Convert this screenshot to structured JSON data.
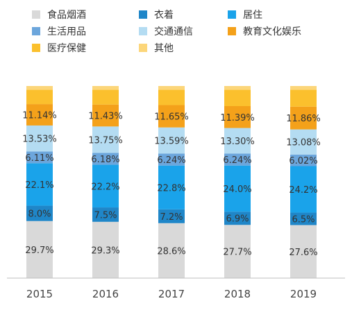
{
  "chart_data": {
    "type": "bar",
    "stacked": true,
    "percent_stacked": true,
    "categories": [
      "2015",
      "2016",
      "2017",
      "2018",
      "2019"
    ],
    "series": [
      {
        "name": "食品烟酒",
        "color": "#d9d9d9",
        "values": [
          29.7,
          29.3,
          28.6,
          27.7,
          27.6
        ],
        "labels": [
          "29.7%",
          "29.3%",
          "28.6%",
          "27.7%",
          "27.6%"
        ]
      },
      {
        "name": "衣着",
        "color": "#1f86c8",
        "values": [
          8.0,
          7.5,
          7.2,
          6.9,
          6.5
        ],
        "labels": [
          "8.0%",
          "7.5%",
          "7.2%",
          "6.9%",
          "6.5%"
        ]
      },
      {
        "name": "居住",
        "color": "#1aa3ea",
        "values": [
          22.1,
          22.2,
          22.8,
          24.0,
          24.2
        ],
        "labels": [
          "22.1%",
          "22.2%",
          "22.8%",
          "24.0%",
          "24.2%"
        ]
      },
      {
        "name": "生活用品",
        "color": "#6ca6dc",
        "values": [
          6.11,
          6.18,
          6.24,
          6.24,
          6.02
        ],
        "labels": [
          "6.11%",
          "6.18%",
          "6.24%",
          "6.24%",
          "6.02%"
        ]
      },
      {
        "name": "交通通信",
        "color": "#b4dcf2",
        "values": [
          13.53,
          13.75,
          13.59,
          13.3,
          13.08
        ],
        "labels": [
          "13.53%",
          "13.75%",
          "13.59%",
          "13.30%",
          "13.08%"
        ]
      },
      {
        "name": "教育文化娱乐",
        "color": "#f4a11a",
        "values": [
          11.14,
          11.43,
          11.65,
          11.39,
          11.86
        ],
        "labels": [
          "11.14%",
          "11.43%",
          "11.65%",
          "11.39%",
          "11.86%"
        ]
      },
      {
        "name": "医疗保健",
        "color": "#fbc02d",
        "values": [
          7.42,
          7.64,
          7.92,
          8.47,
          8.74
        ],
        "labels": [
          "",
          "",
          "",
          "",
          ""
        ]
      },
      {
        "name": "其他",
        "color": "#fcd67a",
        "values": [
          2.0,
          2.0,
          2.0,
          2.0,
          2.0
        ],
        "labels": [
          "",
          "",
          "",
          "",
          ""
        ]
      }
    ],
    "ylim": [
      0,
      100
    ],
    "legend_position": "top",
    "grid": false,
    "title": "",
    "xlabel": "",
    "ylabel": ""
  }
}
